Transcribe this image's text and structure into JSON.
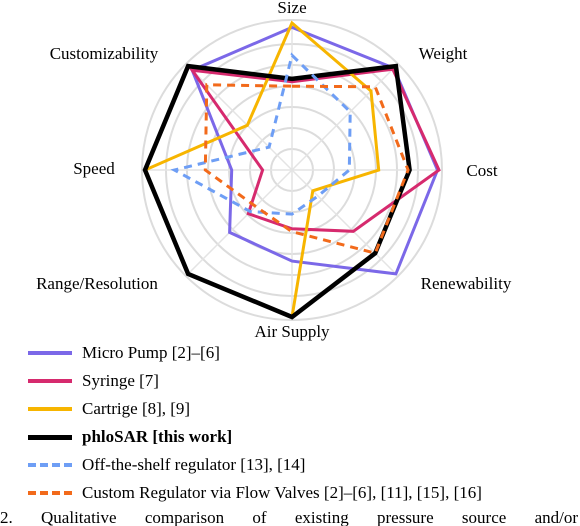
{
  "chart_data": {
    "type": "radar",
    "axes": [
      "Size",
      "Weight",
      "Cost",
      "Renewability",
      "Air Supply",
      "Range/Resolution",
      "Speed",
      "Customizability"
    ],
    "ylim": [
      0,
      1
    ],
    "grid": true,
    "legend_position": "bottom",
    "series": [
      {
        "name": "Micro Pump [2]–[6]",
        "color": "#7b68e8",
        "style": "solid",
        "values": [
          0.97,
          0.98,
          0.99,
          1.0,
          0.62,
          0.6,
          0.41,
          0.96
        ]
      },
      {
        "name": "Syringe [7]",
        "color": "#d62a6e",
        "style": "solid",
        "values": [
          0.6,
          0.97,
          1.0,
          0.59,
          0.4,
          0.42,
          0.2,
          0.96
        ]
      },
      {
        "name": "Cartrige [8], [9]",
        "color": "#f7b500",
        "style": "solid",
        "values": [
          1.0,
          0.76,
          0.59,
          0.2,
          1.0,
          1.0,
          1.0,
          0.43
        ]
      },
      {
        "name": "phloSAR [this work]",
        "color": "#000000",
        "style": "solid",
        "values": [
          0.62,
          1.0,
          0.8,
          0.8,
          1.0,
          1.0,
          1.0,
          1.0
        ]
      },
      {
        "name": "Off-the-shelf regulator [13], [14]",
        "color": "#6e9ef5",
        "style": "dashed",
        "values": [
          0.78,
          0.56,
          0.39,
          0.25,
          0.3,
          0.4,
          0.8,
          0.22
        ]
      },
      {
        "name": "Custom Regulator via Flow Valves [2]–[6], [11], [15], [16]",
        "color": "#f26a1b",
        "style": "dashed",
        "values": [
          0.57,
          0.8,
          0.79,
          0.8,
          0.42,
          0.35,
          0.59,
          0.82
        ]
      }
    ]
  },
  "caption": "2.    Qualitative comparison of existing pressure source and/or"
}
